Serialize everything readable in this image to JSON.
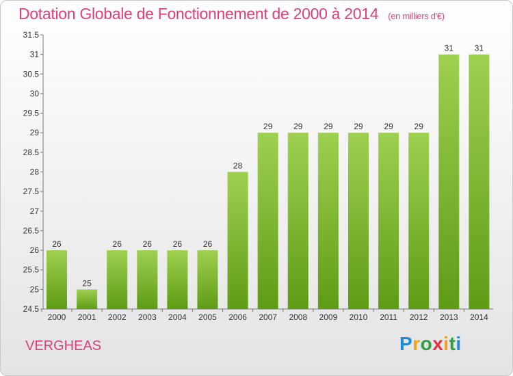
{
  "title": "Dotation Globale de Fonctionnement de 2000 à 2014",
  "unit": "(en milliers d'€)",
  "commune": "VERGHEAS",
  "logo": {
    "letters": [
      "P",
      "r",
      "o",
      "x",
      "i",
      "t",
      "i"
    ],
    "colors": [
      "#1e8ad6",
      "#f0a21e",
      "#2e9e40",
      "#e0334a",
      "#f0a21e",
      "#2e9e40",
      "#1e8ad6"
    ]
  },
  "chart_data": {
    "type": "bar",
    "title": "Dotation Globale de Fonctionnement de 2000 à 2014",
    "subtitle": "(en milliers d'€)",
    "xlabel": "",
    "ylabel": "",
    "categories": [
      "2000",
      "2001",
      "2002",
      "2003",
      "2004",
      "2005",
      "2006",
      "2007",
      "2008",
      "2009",
      "2010",
      "2011",
      "2012",
      "2013",
      "2014"
    ],
    "values": [
      26,
      25,
      26,
      26,
      26,
      26,
      28,
      29,
      29,
      29,
      29,
      29,
      29,
      31,
      31
    ],
    "value_labels": [
      "26",
      "25",
      "26",
      "26",
      "26",
      "26",
      "28",
      "29",
      "29",
      "29",
      "29",
      "29",
      "29",
      "31",
      "31"
    ],
    "ylim": [
      24.5,
      31.5
    ],
    "yticks": [
      "24.5",
      "25",
      "25.5",
      "26",
      "26.5",
      "27",
      "27.5",
      "28",
      "28.5",
      "29",
      "29.5",
      "30",
      "30.5",
      "31",
      "31.5"
    ],
    "grid": false,
    "bar_color_light": "#9fd050",
    "bar_color_dark": "#5e9c14"
  }
}
